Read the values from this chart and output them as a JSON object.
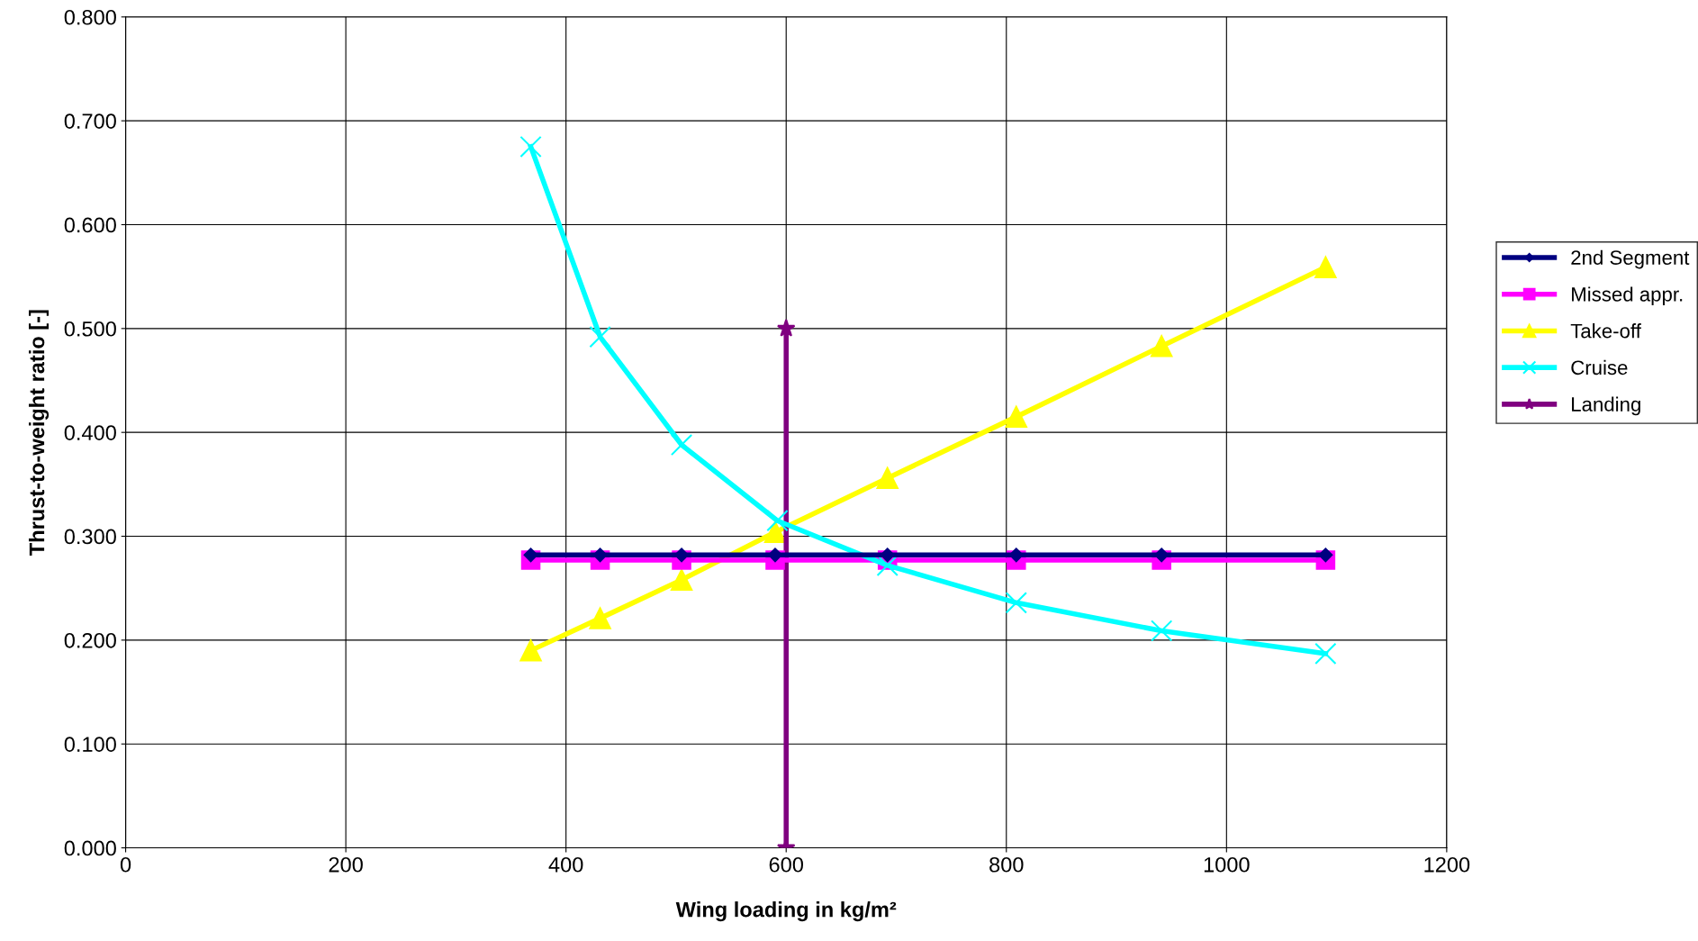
{
  "chart_data": {
    "type": "line",
    "xlabel": "Wing loading in kg/m²",
    "ylabel": "Thrust-to-weight ratio [-]",
    "xlim": [
      0,
      1200
    ],
    "xticks": [
      0,
      200,
      400,
      600,
      800,
      1000,
      1200
    ],
    "ylim": [
      0,
      0.8
    ],
    "yticks": [
      {
        "value": 0,
        "label": "0.000"
      },
      {
        "value": 0.1,
        "label": "0.100"
      },
      {
        "value": 0.2,
        "label": "0.200"
      },
      {
        "value": 0.3,
        "label": "0.300"
      },
      {
        "value": 0.4,
        "label": "0.400"
      },
      {
        "value": 0.5,
        "label": "0.500"
      },
      {
        "value": 0.6,
        "label": "0.600"
      },
      {
        "value": 0.7,
        "label": "0.700"
      },
      {
        "value": 0.8,
        "label": "0.800"
      }
    ],
    "grid": true,
    "legend": "right",
    "line_style": "solid",
    "series": [
      {
        "name": "2nd Segment",
        "color": "#000080",
        "marker": "diamond",
        "x": [
          368,
          431,
          505,
          590,
          692,
          809,
          941,
          1090
        ],
        "values": [
          0.282,
          0.282,
          0.282,
          0.282,
          0.282,
          0.282,
          0.282,
          0.282
        ]
      },
      {
        "name": "Missed appr.",
        "color": "#ff00ff",
        "marker": "square",
        "x": [
          368,
          431,
          505,
          590,
          692,
          809,
          941,
          1090
        ],
        "values": [
          0.277,
          0.277,
          0.277,
          0.277,
          0.277,
          0.277,
          0.277,
          0.277
        ]
      },
      {
        "name": "Take-off",
        "color": "#ffff00",
        "marker": "triangle",
        "x": [
          368,
          431,
          505,
          590,
          692,
          809,
          941,
          1090
        ],
        "values": [
          0.19,
          0.221,
          0.258,
          0.304,
          0.356,
          0.415,
          0.483,
          0.559
        ]
      },
      {
        "name": "Cruise",
        "color": "#00ffff",
        "marker": "cross",
        "x": [
          368,
          431,
          505,
          592,
          692,
          809,
          941,
          1090
        ],
        "values": [
          0.675,
          0.492,
          0.388,
          0.315,
          0.272,
          0.236,
          0.209,
          0.187
        ]
      },
      {
        "name": "Landing",
        "color": "#800080",
        "marker": "star",
        "x": [
          600,
          600
        ],
        "values": [
          0.0,
          0.5
        ]
      }
    ]
  }
}
